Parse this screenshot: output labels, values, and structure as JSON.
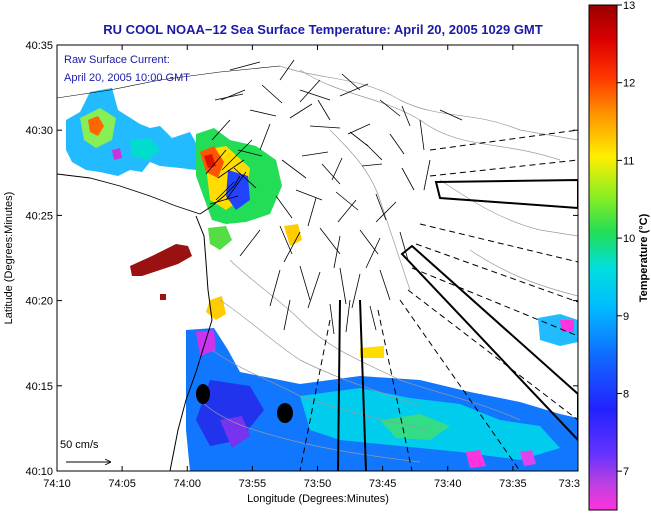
{
  "title": "RU COOL  NOAA−12  Sea Surface Temperature:  April 20, 2005 1029 GMT",
  "inset": {
    "line1": "Raw Surface Current:",
    "line2": "April 20, 2005 10:00 GMT"
  },
  "axes": {
    "xlabel": "Longitude (Degrees:Minutes)",
    "ylabel": "Latitude (Degrees:Minutes)",
    "x_ticks": [
      "74:10",
      "74:05",
      "74:00",
      "73:55",
      "73:50",
      "73:45",
      "73:40",
      "73:35",
      "73:3"
    ],
    "y_ticks": [
      "40:35",
      "40:30",
      "40:25",
      "40:20",
      "40:15",
      "40:10"
    ]
  },
  "colorbar": {
    "label": "Temperature (°C)",
    "ticks": [
      "13",
      "12",
      "11",
      "10",
      "9",
      "8",
      "7"
    ],
    "min": 6.5,
    "max": 13
  },
  "scale_arrow": {
    "label": "50 cm/s"
  },
  "colors": {
    "title": "#1a1aa8",
    "land": "#ffffff",
    "contours": "#9a9a9a",
    "vectors": "#000000"
  }
}
